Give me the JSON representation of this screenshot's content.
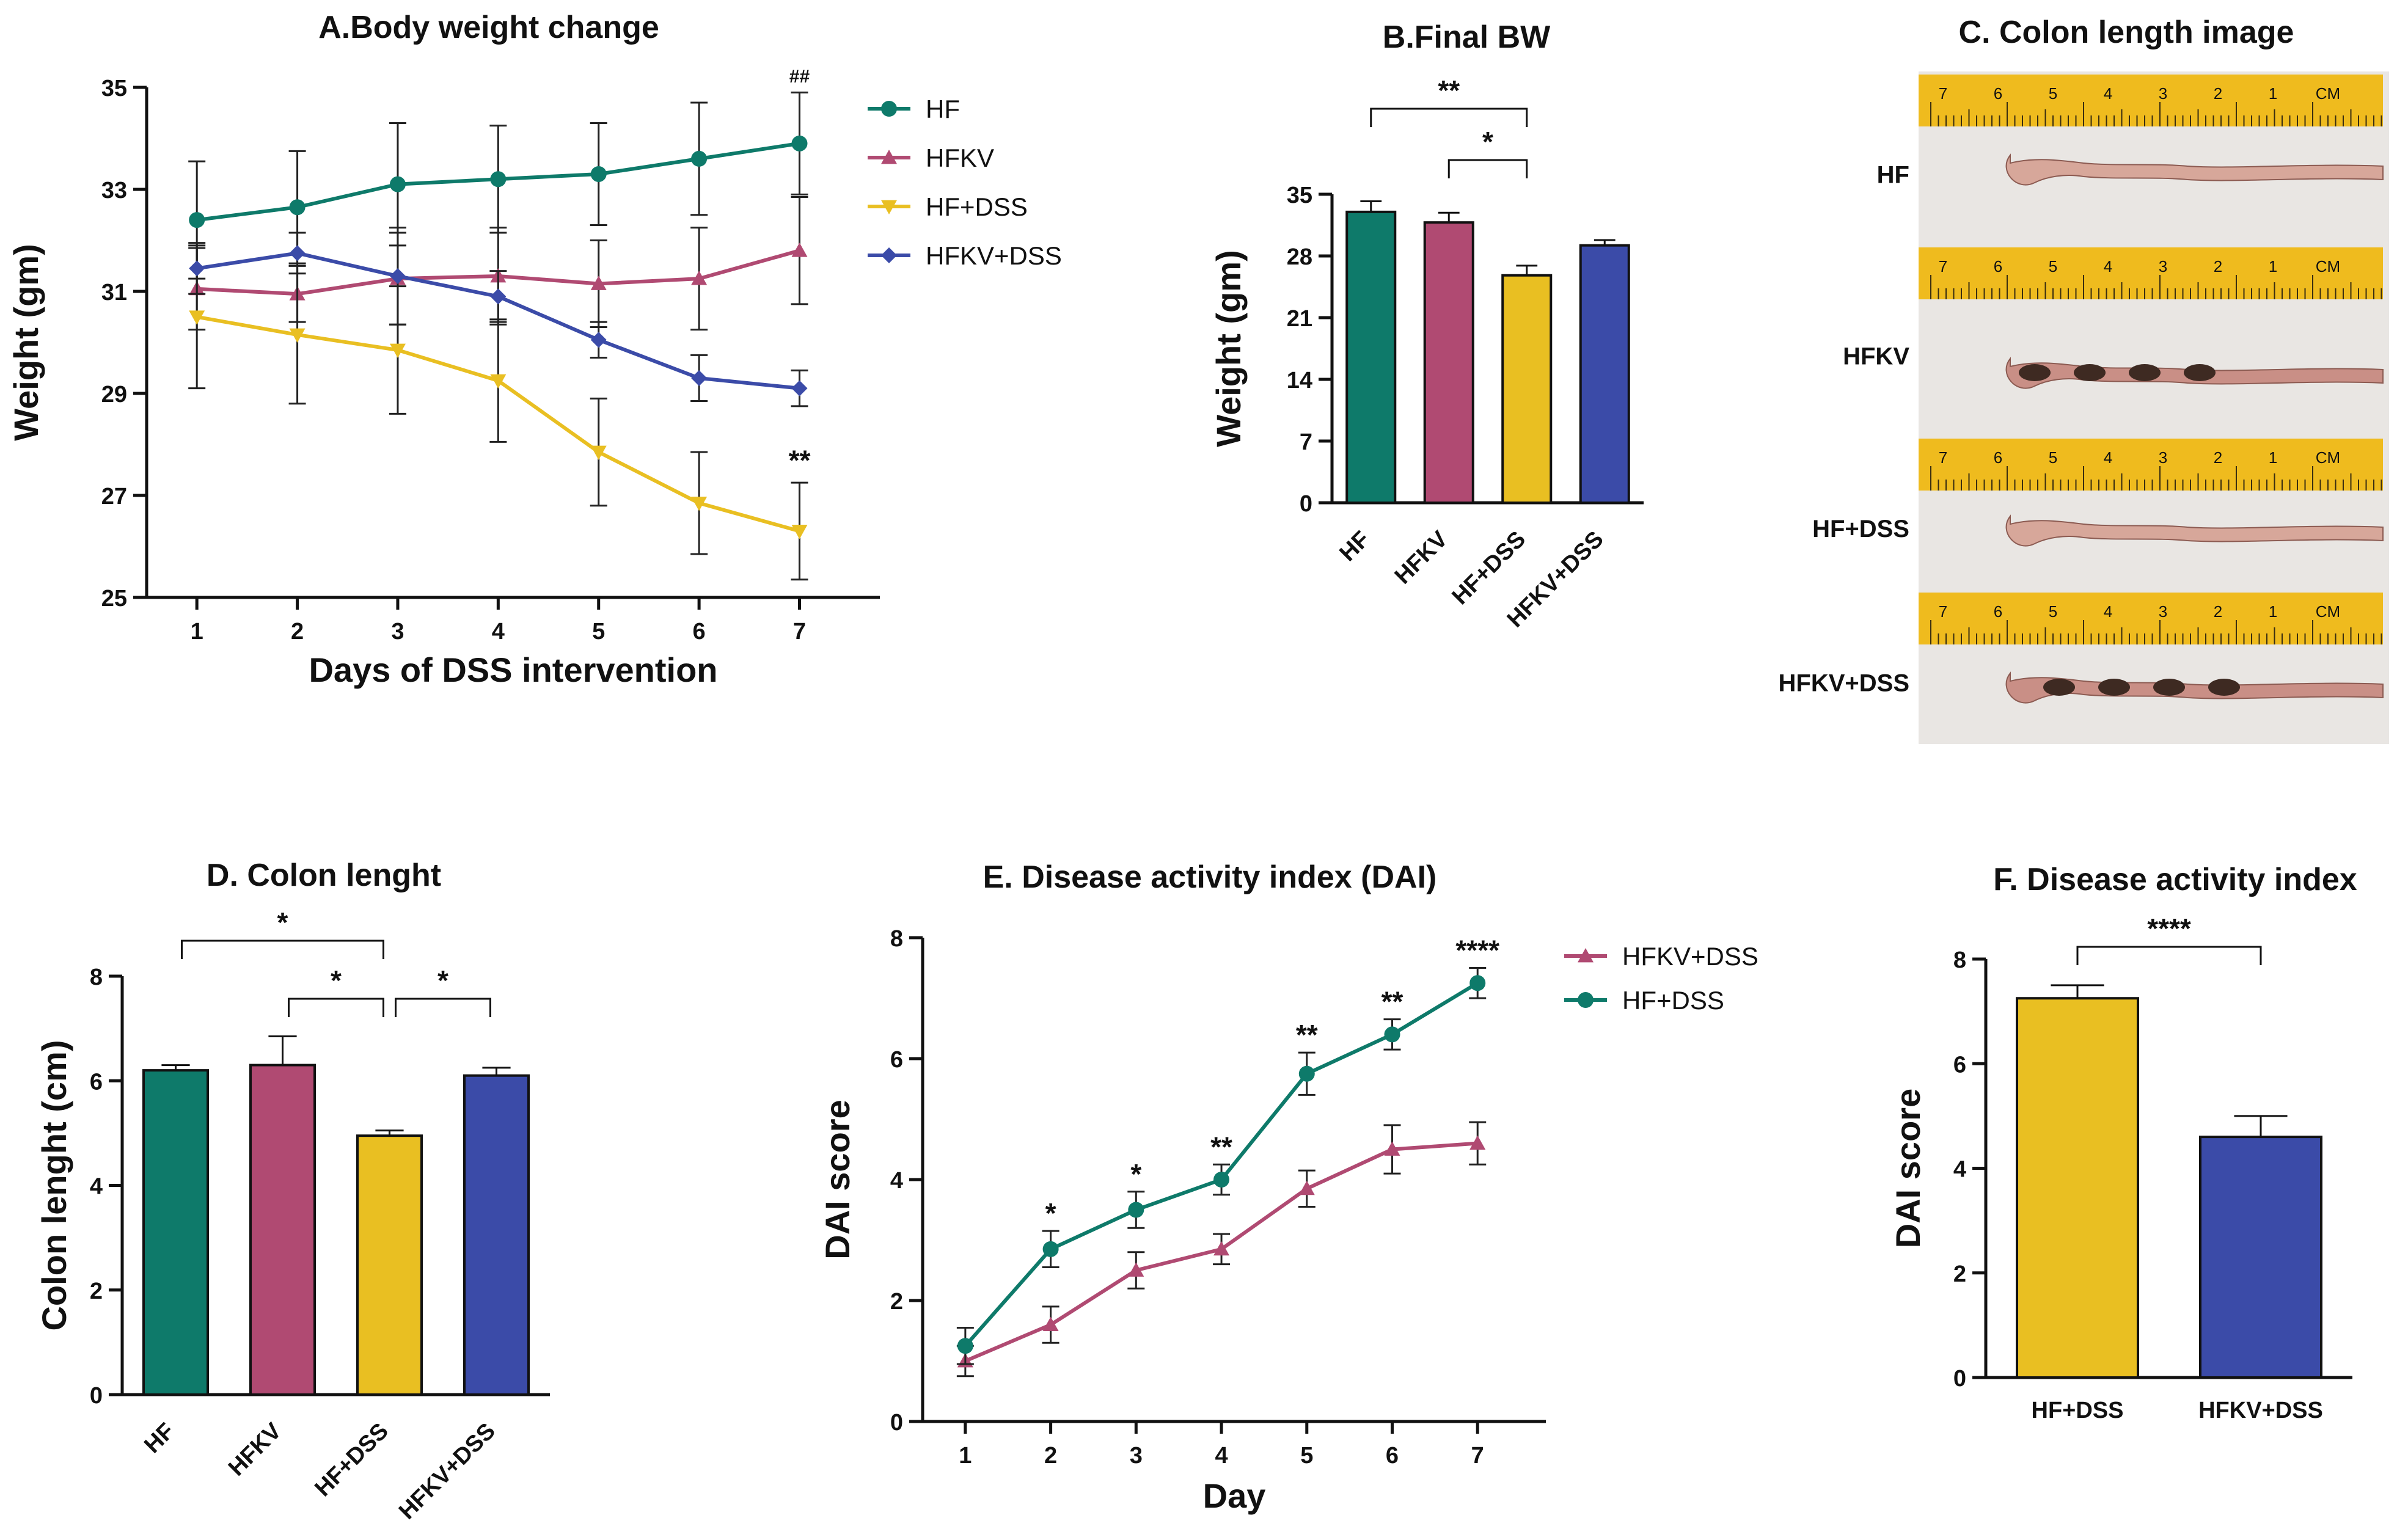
{
  "colors": {
    "hf": "#0e7a6a",
    "hfkv": "#b04a72",
    "hfdss": "#e9bf22",
    "hfkvdss": "#3b4ba8"
  },
  "chart_data": [
    {
      "id": "A",
      "type": "line",
      "title": "A.Body weight change",
      "xlabel": "Days of DSS intervention",
      "ylabel": "Weight (gm)",
      "x": [
        1,
        2,
        3,
        4,
        5,
        6,
        7
      ],
      "ylim": [
        25,
        35
      ],
      "yticks": [
        25,
        27,
        29,
        31,
        33,
        35
      ],
      "series": [
        {
          "name": "HF",
          "key": "hf",
          "marker": "circle",
          "values": [
            32.4,
            32.65,
            33.1,
            33.2,
            33.3,
            33.6,
            33.9
          ],
          "err": [
            1.15,
            1.1,
            1.2,
            1.05,
            1.0,
            1.1,
            1.0
          ]
        },
        {
          "name": "HFKV",
          "key": "hfkv",
          "marker": "tri-up",
          "values": [
            31.05,
            30.95,
            31.25,
            31.3,
            31.15,
            31.25,
            31.8
          ],
          "err": [
            0.8,
            0.55,
            0.9,
            0.95,
            0.85,
            1.0,
            1.05
          ]
        },
        {
          "name": "HF+DSS",
          "key": "hfdss",
          "marker": "tri-down",
          "values": [
            30.5,
            30.15,
            29.85,
            29.25,
            27.85,
            26.85,
            26.3
          ],
          "err": [
            1.4,
            1.35,
            1.25,
            1.2,
            1.05,
            1.0,
            0.95
          ]
        },
        {
          "name": "HFKV+DSS",
          "key": "hfkvdss",
          "marker": "diamond",
          "values": [
            31.45,
            31.75,
            31.3,
            30.9,
            30.05,
            29.3,
            29.1
          ],
          "err": [
            0.5,
            0.4,
            0.95,
            0.5,
            0.35,
            0.45,
            0.35
          ]
        }
      ],
      "annotations": [
        {
          "text": "##",
          "x": 7,
          "y": 35.0
        },
        {
          "text": "**",
          "x": 7,
          "y": 27.4
        }
      ]
    },
    {
      "id": "B",
      "type": "bar",
      "title": "B.Final BW",
      "ylabel": "Weight (gm)",
      "categories": [
        "HF",
        "HFKV",
        "HF+DSS",
        "HFKV+DSS"
      ],
      "keys": [
        "hf",
        "hfkv",
        "hfdss",
        "hfkvdss"
      ],
      "values": [
        33.0,
        31.8,
        25.8,
        29.2
      ],
      "err": [
        1.2,
        1.1,
        1.1,
        0.6
      ],
      "ylim": [
        0,
        35
      ],
      "yticks": [
        0,
        7,
        14,
        21,
        28,
        35
      ],
      "brackets": [
        {
          "from": 0,
          "to": 2,
          "text": "**"
        },
        {
          "from": 1,
          "to": 2,
          "text": "*"
        }
      ]
    },
    {
      "id": "D",
      "type": "bar",
      "title": "D. Colon lenght",
      "ylabel": "Colon lenght (cm)",
      "categories": [
        "HF",
        "HFKV",
        "HF+DSS",
        "HFKV+DSS"
      ],
      "keys": [
        "hf",
        "hfkv",
        "hfdss",
        "hfkvdss"
      ],
      "values": [
        6.2,
        6.3,
        4.95,
        6.1
      ],
      "err": [
        0.1,
        0.55,
        0.1,
        0.15
      ],
      "ylim": [
        0,
        8
      ],
      "yticks": [
        0,
        2,
        4,
        6,
        8
      ],
      "brackets": [
        {
          "from": 0,
          "to": 2,
          "text": "*"
        },
        {
          "from": 1,
          "to": 2,
          "text": "*"
        },
        {
          "from": 2,
          "to": 3,
          "text": "*"
        }
      ]
    },
    {
      "id": "E",
      "type": "line",
      "title": "E. Disease activity index (DAI)",
      "xlabel": "Day",
      "ylabel": "DAI score",
      "x": [
        1,
        2,
        3,
        4,
        5,
        6,
        7
      ],
      "ylim": [
        0,
        8
      ],
      "yticks": [
        0,
        2,
        4,
        6,
        8
      ],
      "series": [
        {
          "name": "HFKV+DSS",
          "key": "hfkv",
          "marker": "tri-up",
          "values": [
            1.0,
            1.6,
            2.5,
            2.85,
            3.85,
            4.5,
            4.6
          ],
          "err": [
            0.25,
            0.3,
            0.3,
            0.25,
            0.3,
            0.4,
            0.35
          ]
        },
        {
          "name": "HF+DSS",
          "key": "hf",
          "marker": "circle",
          "values": [
            1.25,
            2.85,
            3.5,
            4.0,
            5.75,
            6.4,
            7.25
          ],
          "err": [
            0.3,
            0.3,
            0.3,
            0.25,
            0.35,
            0.25,
            0.25
          ]
        }
      ],
      "annotations": [
        {
          "text": "*",
          "x": 2,
          "y": 3.2
        },
        {
          "text": "*",
          "x": 3,
          "y": 3.85
        },
        {
          "text": "**",
          "x": 4,
          "y": 4.3
        },
        {
          "text": "**",
          "x": 5,
          "y": 6.15
        },
        {
          "text": "**",
          "x": 6,
          "y": 6.7
        },
        {
          "text": "****",
          "x": 7,
          "y": 7.55
        }
      ]
    },
    {
      "id": "F",
      "type": "bar",
      "title": "F. Disease activity index",
      "ylabel": "DAI score",
      "categories": [
        "HF+DSS",
        "HFKV+DSS"
      ],
      "keys": [
        "hfdss",
        "hfkvdss"
      ],
      "values": [
        7.25,
        4.6
      ],
      "err": [
        0.25,
        0.4
      ],
      "ylim": [
        0,
        8
      ],
      "yticks": [
        0,
        2,
        4,
        6,
        8
      ],
      "brackets": [
        {
          "from": 0,
          "to": 1,
          "text": "****"
        }
      ]
    }
  ],
  "panel_c": {
    "title": "C. Colon length image",
    "labels": [
      "HF",
      "HFKV",
      "HF+DSS",
      "HFKV+DSS"
    ],
    "ruler_digits": [
      "7",
      "6",
      "5",
      "4",
      "3",
      "2",
      "1",
      "CM"
    ]
  }
}
